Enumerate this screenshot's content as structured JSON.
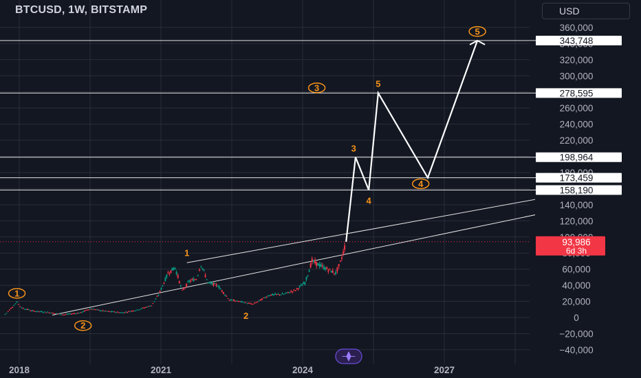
{
  "header": {
    "symbol_title": "BTCUSD, 1W, BITSTAMP",
    "currency": "USD"
  },
  "colors": {
    "background": "#131722",
    "grid": "#2a2e39",
    "axis_text": "#b2b5be",
    "up_candle": "#089981",
    "down_candle": "#f23645",
    "annotation_orange": "#f7931a",
    "projection_line": "#ffffff",
    "price_tag_red": "#f23645"
  },
  "footer": {
    "tv_icon": "tradingview-logo-icon"
  },
  "chart_data": {
    "type": "line",
    "title": "BTCUSD, 1W, BITSTAMP",
    "y_axis": {
      "ticks": [
        "360,000",
        "340,000",
        "320,000",
        "300,000",
        "280,000",
        "260,000",
        "240,000",
        "220,000",
        "200,000",
        "180,000",
        "160,000",
        "140,000",
        "120,000",
        "100,000",
        "80,000",
        "60,000",
        "40,000",
        "20,000",
        "0",
        "−20,000",
        "−40,000"
      ],
      "tick_values": [
        360000,
        340000,
        320000,
        300000,
        280000,
        260000,
        240000,
        220000,
        200000,
        180000,
        160000,
        140000,
        120000,
        100000,
        80000,
        60000,
        40000,
        20000,
        0,
        -20000,
        -40000
      ],
      "range": [
        -40000,
        360000
      ]
    },
    "x_axis": {
      "ticks": [
        "2018",
        "2021",
        "2024",
        "2027"
      ],
      "tick_values": [
        2018,
        2021,
        2024,
        2027
      ]
    },
    "price_levels": [
      {
        "label": "343,748",
        "value": 343748
      },
      {
        "label": "278,595",
        "value": 278595
      },
      {
        "label": "198,964",
        "value": 198964
      },
      {
        "label": "173,459",
        "value": 173459
      },
      {
        "label": "158,190",
        "value": 158190
      }
    ],
    "current_price": {
      "label": "93,986",
      "countdown": "6d 3h",
      "value": 93986
    },
    "price_series": {
      "name": "BTCUSD weekly",
      "x": [
        2017.7,
        2017.95,
        2018.05,
        2018.3,
        2018.6,
        2018.95,
        2019.3,
        2019.5,
        2019.8,
        2020.2,
        2020.5,
        2020.8,
        2020.95,
        2021.15,
        2021.3,
        2021.45,
        2021.6,
        2021.75,
        2021.85,
        2022.0,
        2022.2,
        2022.45,
        2022.7,
        2022.95,
        2023.3,
        2023.6,
        2023.85,
        2024.05,
        2024.2,
        2024.45,
        2024.7,
        2024.8,
        2024.92
      ],
      "y": [
        4000,
        19000,
        12000,
        8000,
        6500,
        3500,
        6000,
        11000,
        8000,
        6000,
        9500,
        15000,
        28000,
        55000,
        62000,
        33000,
        45000,
        48000,
        66000,
        43000,
        40000,
        22000,
        19500,
        16500,
        28000,
        29000,
        34000,
        43000,
        70000,
        62000,
        55000,
        68000,
        94000
      ]
    },
    "channel_lines": [
      {
        "x": [
          2018.7,
          2031.45
        ],
        "y": [
          3000,
          158190
        ]
      },
      {
        "x": [
          2021.55,
          2031.45
        ],
        "y": [
          68000,
          173459
        ]
      }
    ],
    "projection": {
      "x": [
        2024.92,
        2025.12,
        2025.4,
        2025.6,
        2026.65,
        2027.7
      ],
      "y": [
        94000,
        198964,
        158190,
        278595,
        173459,
        343748
      ]
    },
    "wave_labels": [
      {
        "text": "1",
        "x": 2017.95,
        "y": 30000,
        "circled": true
      },
      {
        "text": "2",
        "x": 2019.35,
        "y": -10000,
        "circled": true
      },
      {
        "text": "1",
        "x": 2021.55,
        "y": 80000,
        "circled": false
      },
      {
        "text": "2",
        "x": 2022.8,
        "y": 2000,
        "circled": false
      },
      {
        "text": "3",
        "x": 2024.3,
        "y": 285000,
        "circled": true
      },
      {
        "text": "3",
        "x": 2025.08,
        "y": 210000,
        "circled": false
      },
      {
        "text": "4",
        "x": 2025.4,
        "y": 145000,
        "circled": false
      },
      {
        "text": "5",
        "x": 2025.6,
        "y": 290000,
        "circled": false
      },
      {
        "text": "4",
        "x": 2026.5,
        "y": 166000,
        "circled": true
      },
      {
        "text": "5",
        "x": 2027.7,
        "y": 355000,
        "circled": true
      }
    ],
    "grid": true
  }
}
